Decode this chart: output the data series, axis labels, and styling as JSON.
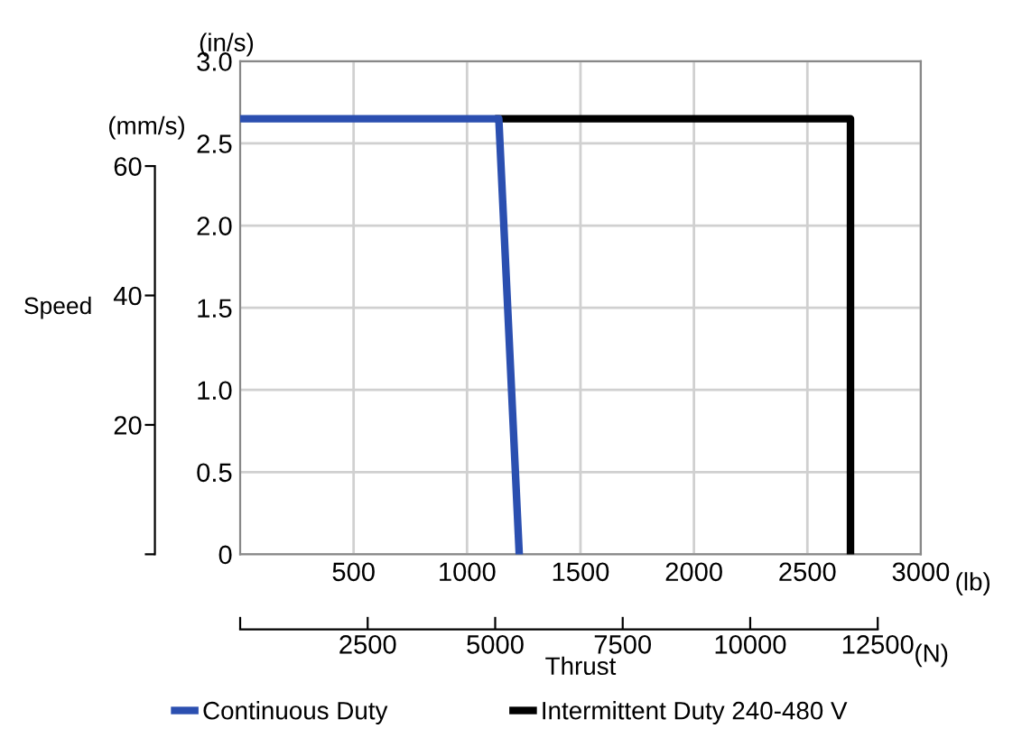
{
  "chart_data": {
    "type": "line",
    "xlabel": "Thrust",
    "y2label": "Speed",
    "annotations": [
      "(in/s)",
      "(mm/s)",
      "(lb)",
      "(N)"
    ],
    "series": [
      {
        "name": "Continuous Duty",
        "color": "#2b4fb0",
        "x": [
          0,
          1140,
          1230
        ],
        "values": [
          2.65,
          2.65,
          0
        ]
      },
      {
        "name": "Intermittent Duty 240-480 V",
        "color": "#000000",
        "x": [
          1140,
          2690,
          2690
        ],
        "values": [
          2.65,
          2.65,
          0
        ]
      }
    ],
    "xlim": [
      0,
      3000
    ],
    "xticks": [
      500,
      1000,
      1500,
      2000,
      2500,
      3000
    ],
    "ylim": [
      0,
      3.0
    ],
    "yticks": [
      {
        "value": 0,
        "label": "0"
      },
      {
        "value": 0.5,
        "label": "0.5"
      },
      {
        "value": 1.0,
        "label": "1.0"
      },
      {
        "value": 1.5,
        "label": "1.5"
      },
      {
        "value": 2.0,
        "label": "2.0"
      },
      {
        "value": 2.5,
        "label": "2.5"
      },
      {
        "value": 3.0,
        "label": "3.0"
      }
    ],
    "y2lim": [
      0,
      76.2
    ],
    "y2ticks": [
      {
        "value": 0,
        "label": null
      },
      20,
      40,
      60
    ],
    "x2lim": [
      0,
      13345
    ],
    "x2ticks": [
      {
        "value": 0,
        "label": null
      },
      2500,
      5000,
      7500,
      10000,
      12500
    ],
    "grid": true,
    "legend": "bottom",
    "marker": "none",
    "line_style": "solid"
  }
}
